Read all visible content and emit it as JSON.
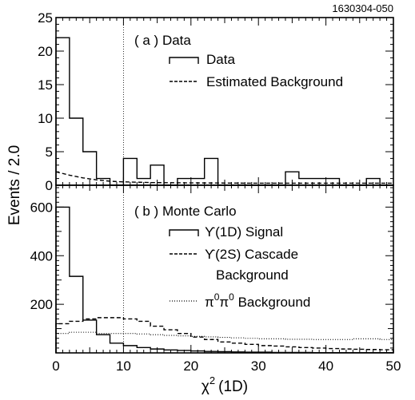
{
  "figure_id": "1630304-050",
  "ylabel": "Events / 2.0",
  "xlabel": "χ",
  "xlabel_sup": "2",
  "xlabel_suffix": "(1D)",
  "chart_data": [
    {
      "type": "line",
      "panel_label": "( a ) Data",
      "xlim": [
        0,
        50
      ],
      "ylim": [
        0,
        25
      ],
      "x_ticks": [
        0,
        10,
        20,
        30,
        40,
        50
      ],
      "y_ticks": [
        0,
        5,
        10,
        15,
        20,
        25
      ],
      "y_tick_labels": [
        "0",
        "5",
        "10",
        "15",
        "20",
        "25"
      ],
      "grid": false,
      "vline_x": 10,
      "bin_width": 2,
      "series": [
        {
          "name": "Data",
          "style": "solid-histogram",
          "bin_edges": [
            0,
            2,
            4,
            6,
            8,
            10,
            12,
            14,
            16,
            18,
            20,
            22,
            24,
            26,
            28,
            30,
            32,
            34,
            36,
            38,
            40,
            42,
            44,
            46,
            48,
            50
          ],
          "values": [
            22,
            10,
            5,
            1,
            0,
            4,
            1,
            3,
            0,
            1,
            1,
            4,
            0,
            0,
            0,
            0,
            0,
            2,
            1,
            1,
            1,
            0,
            0,
            1,
            0
          ]
        },
        {
          "name": "Estimated Background",
          "style": "dashed",
          "x": [
            0,
            2,
            4,
            6,
            8,
            10,
            14,
            20,
            30,
            40,
            50
          ],
          "y": [
            2.0,
            1.5,
            1.1,
            0.8,
            0.6,
            0.5,
            0.4,
            0.35,
            0.3,
            0.3,
            0.3
          ]
        }
      ]
    },
    {
      "type": "line",
      "panel_label": "( b ) Monte Carlo",
      "xlim": [
        0,
        50
      ],
      "ylim": [
        0,
        690
      ],
      "x_ticks": [
        0,
        10,
        20,
        30,
        40,
        50
      ],
      "x_tick_labels": [
        "0",
        "10",
        "20",
        "30",
        "40",
        "50"
      ],
      "y_ticks": [
        200,
        400,
        600
      ],
      "y_tick_labels": [
        "200",
        "400",
        "600"
      ],
      "grid": false,
      "vline_x": 10,
      "series": [
        {
          "name": "ϒ(1D) Signal",
          "style": "solid-histogram",
          "bin_edges": [
            0,
            2,
            4,
            6,
            8,
            10,
            12,
            14,
            16,
            18,
            20,
            22,
            24,
            26,
            28,
            30,
            32,
            34,
            36,
            38,
            40,
            42,
            44,
            46,
            48,
            50
          ],
          "values": [
            600,
            315,
            135,
            75,
            40,
            30,
            22,
            16,
            12,
            10,
            8,
            6,
            5,
            4,
            3,
            3,
            2,
            2,
            2,
            1,
            1,
            1,
            1,
            1,
            1
          ]
        },
        {
          "name": "ϒ(2S) Cascade",
          "name_line2": "Background",
          "style": "dashed-histogram",
          "bin_edges": [
            0,
            2,
            4,
            6,
            8,
            10,
            12,
            14,
            16,
            18,
            20,
            22,
            24,
            26,
            28,
            30,
            32,
            34,
            36,
            38,
            40,
            42,
            44,
            46,
            48,
            50
          ],
          "values": [
            120,
            130,
            140,
            145,
            145,
            140,
            130,
            110,
            95,
            80,
            65,
            55,
            45,
            40,
            35,
            30,
            28,
            25,
            22,
            20,
            18,
            16,
            15,
            14,
            13
          ]
        },
        {
          "name": "π⁰π⁰ Background",
          "name_base": "π",
          "name_sup": "0",
          "name_suffix": " Background",
          "style": "dotted-histogram",
          "bin_edges": [
            0,
            2,
            4,
            6,
            8,
            10,
            12,
            14,
            16,
            18,
            20,
            22,
            24,
            26,
            28,
            30,
            32,
            34,
            36,
            38,
            40,
            42,
            44,
            46,
            48,
            50
          ],
          "values": [
            80,
            85,
            85,
            80,
            80,
            80,
            78,
            75,
            72,
            70,
            68,
            66,
            64,
            62,
            60,
            58,
            58,
            56,
            56,
            55,
            55,
            55,
            58,
            58,
            55
          ]
        }
      ]
    }
  ]
}
